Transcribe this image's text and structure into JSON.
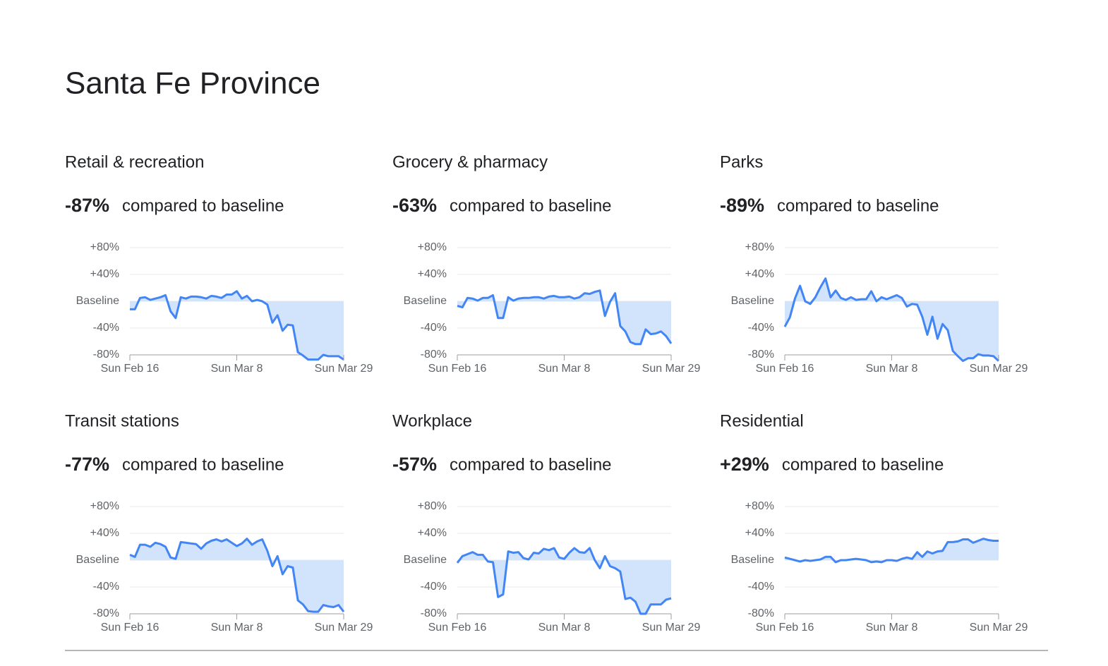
{
  "title": "Santa Fe Province",
  "chart_data": [
    {
      "type": "line",
      "title": "Retail & recreation",
      "headline": {
        "value": -87,
        "label": "-87%"
      },
      "subtitle": "compared to baseline",
      "categories": [
        "Sun Feb 16",
        null,
        null,
        null,
        null,
        null,
        null,
        null,
        null,
        null,
        null,
        null,
        null,
        null,
        null,
        null,
        null,
        null,
        null,
        null,
        null,
        "Sun Mar 8",
        null,
        null,
        null,
        null,
        null,
        null,
        null,
        null,
        null,
        null,
        null,
        null,
        null,
        null,
        null,
        null,
        null,
        null,
        null,
        null,
        "Sun Mar 29"
      ],
      "series": [
        {
          "color": "#4285f4",
          "values": [
            -12,
            -12,
            5,
            6,
            2,
            4,
            6,
            9,
            -15,
            -25,
            6,
            4,
            7,
            7,
            6,
            4,
            8,
            7,
            5,
            10,
            10,
            15,
            4,
            8,
            0,
            2,
            0,
            -5,
            -32,
            -21,
            -44,
            -35,
            -36,
            -76,
            -81,
            -87,
            -87,
            -87,
            -80,
            -82,
            -82,
            -82,
            -87
          ]
        }
      ],
      "ylim": [
        -80,
        80
      ],
      "yticks": [
        {
          "value": 80,
          "label": "+80%"
        },
        {
          "value": 40,
          "label": "+40%"
        },
        {
          "value": 0,
          "label": "Baseline"
        },
        {
          "value": -40,
          "label": "-40%"
        },
        {
          "value": -80,
          "label": "-80%"
        }
      ],
      "area_color": "#d2e3fc"
    },
    {
      "type": "line",
      "title": "Grocery & pharmacy",
      "headline": {
        "value": -63,
        "label": "-63%"
      },
      "subtitle": "compared to baseline",
      "categories": [
        "Sun Feb 16",
        null,
        null,
        null,
        null,
        null,
        null,
        null,
        null,
        null,
        null,
        null,
        null,
        null,
        null,
        null,
        null,
        null,
        null,
        null,
        null,
        "Sun Mar 8",
        null,
        null,
        null,
        null,
        null,
        null,
        null,
        null,
        null,
        null,
        null,
        null,
        null,
        null,
        null,
        null,
        null,
        null,
        null,
        null,
        "Sun Mar 29"
      ],
      "series": [
        {
          "color": "#4285f4",
          "values": [
            -7,
            -9,
            5,
            4,
            1,
            5,
            5,
            9,
            -25,
            -25,
            6,
            1,
            4,
            5,
            5,
            6,
            6,
            4,
            7,
            8,
            6,
            6,
            7,
            4,
            6,
            12,
            11,
            14,
            16,
            -22,
            -1,
            12,
            -37,
            -45,
            -61,
            -64,
            -64,
            -42,
            -49,
            -48,
            -45,
            -52,
            -63
          ]
        }
      ],
      "ylim": [
        -80,
        80
      ],
      "yticks": [
        {
          "value": 80,
          "label": "+80%"
        },
        {
          "value": 40,
          "label": "+40%"
        },
        {
          "value": 0,
          "label": "Baseline"
        },
        {
          "value": -40,
          "label": "-40%"
        },
        {
          "value": -80,
          "label": "-80%"
        }
      ],
      "area_color": "#d2e3fc"
    },
    {
      "type": "line",
      "title": "Parks",
      "headline": {
        "value": -89,
        "label": "-89%"
      },
      "subtitle": "compared to baseline",
      "categories": [
        "Sun Feb 16",
        null,
        null,
        null,
        null,
        null,
        null,
        null,
        null,
        null,
        null,
        null,
        null,
        null,
        null,
        null,
        null,
        null,
        null,
        null,
        null,
        "Sun Mar 8",
        null,
        null,
        null,
        null,
        null,
        null,
        null,
        null,
        null,
        null,
        null,
        null,
        null,
        null,
        null,
        null,
        null,
        null,
        null,
        null,
        "Sun Mar 29"
      ],
      "series": [
        {
          "color": "#4285f4",
          "values": [
            -38,
            -24,
            4,
            23,
            0,
            -4,
            6,
            21,
            34,
            6,
            16,
            5,
            2,
            6,
            2,
            3,
            3,
            15,
            0,
            6,
            3,
            6,
            9,
            5,
            -8,
            -4,
            -5,
            -23,
            -50,
            -23,
            -56,
            -34,
            -43,
            -74,
            -82,
            -89,
            -85,
            -85,
            -79,
            -81,
            -81,
            -82,
            -89
          ]
        }
      ],
      "ylim": [
        -80,
        80
      ],
      "yticks": [
        {
          "value": 80,
          "label": "+80%"
        },
        {
          "value": 40,
          "label": "+40%"
        },
        {
          "value": 0,
          "label": "Baseline"
        },
        {
          "value": -40,
          "label": "-40%"
        },
        {
          "value": -80,
          "label": "-80%"
        }
      ],
      "area_color": "#d2e3fc"
    },
    {
      "type": "line",
      "title": "Transit stations",
      "headline": {
        "value": -77,
        "label": "-77%"
      },
      "subtitle": "compared to baseline",
      "categories": [
        "Sun Feb 16",
        null,
        null,
        null,
        null,
        null,
        null,
        null,
        null,
        null,
        null,
        null,
        null,
        null,
        null,
        null,
        null,
        null,
        null,
        null,
        null,
        "Sun Mar 8",
        null,
        null,
        null,
        null,
        null,
        null,
        null,
        null,
        null,
        null,
        null,
        null,
        null,
        null,
        null,
        null,
        null,
        null,
        null,
        null,
        "Sun Mar 29"
      ],
      "series": [
        {
          "color": "#4285f4",
          "values": [
            8,
            5,
            23,
            23,
            20,
            26,
            24,
            20,
            4,
            2,
            27,
            26,
            25,
            24,
            17,
            25,
            29,
            31,
            28,
            31,
            26,
            21,
            25,
            32,
            23,
            28,
            31,
            14,
            -9,
            6,
            -21,
            -9,
            -11,
            -60,
            -66,
            -76,
            -77,
            -77,
            -67,
            -69,
            -70,
            -67,
            -77
          ]
        }
      ],
      "ylim": [
        -80,
        80
      ],
      "yticks": [
        {
          "value": 80,
          "label": "+80%"
        },
        {
          "value": 40,
          "label": "+40%"
        },
        {
          "value": 0,
          "label": "Baseline"
        },
        {
          "value": -40,
          "label": "-40%"
        },
        {
          "value": -80,
          "label": "-80%"
        }
      ],
      "area_color": "#d2e3fc"
    },
    {
      "type": "line",
      "title": "Workplace",
      "headline": {
        "value": -57,
        "label": "-57%"
      },
      "subtitle": "compared to baseline",
      "categories": [
        "Sun Feb 16",
        null,
        null,
        null,
        null,
        null,
        null,
        null,
        null,
        null,
        null,
        null,
        null,
        null,
        null,
        null,
        null,
        null,
        null,
        null,
        null,
        "Sun Mar 8",
        null,
        null,
        null,
        null,
        null,
        null,
        null,
        null,
        null,
        null,
        null,
        null,
        null,
        null,
        null,
        null,
        null,
        null,
        null,
        null,
        "Sun Mar 29"
      ],
      "series": [
        {
          "color": "#4285f4",
          "values": [
            -4,
            6,
            9,
            12,
            8,
            8,
            -2,
            -3,
            -55,
            -51,
            13,
            11,
            12,
            3,
            1,
            11,
            10,
            17,
            15,
            18,
            4,
            2,
            11,
            18,
            12,
            11,
            18,
            0,
            -12,
            6,
            -9,
            -12,
            -17,
            -58,
            -56,
            -62,
            -80,
            -80,
            -66,
            -66,
            -66,
            -59,
            -57
          ]
        }
      ],
      "ylim": [
        -80,
        80
      ],
      "yticks": [
        {
          "value": 80,
          "label": "+80%"
        },
        {
          "value": 40,
          "label": "+40%"
        },
        {
          "value": 0,
          "label": "Baseline"
        },
        {
          "value": -40,
          "label": "-40%"
        },
        {
          "value": -80,
          "label": "-80%"
        }
      ],
      "area_color": "#d2e3fc"
    },
    {
      "type": "line",
      "title": "Residential",
      "headline": {
        "value": 29,
        "label": "+29%"
      },
      "subtitle": "compared to baseline",
      "categories": [
        "Sun Feb 16",
        null,
        null,
        null,
        null,
        null,
        null,
        null,
        null,
        null,
        null,
        null,
        null,
        null,
        null,
        null,
        null,
        null,
        null,
        null,
        null,
        "Sun Mar 8",
        null,
        null,
        null,
        null,
        null,
        null,
        null,
        null,
        null,
        null,
        null,
        null,
        null,
        null,
        null,
        null,
        null,
        null,
        null,
        null,
        "Sun Mar 29"
      ],
      "series": [
        {
          "color": "#4285f4",
          "values": [
            4,
            2,
            0,
            -2,
            0,
            -1,
            0,
            1,
            5,
            5,
            -3,
            0,
            0,
            1,
            2,
            1,
            0,
            -3,
            -2,
            -3,
            0,
            0,
            -1,
            2,
            4,
            2,
            12,
            5,
            13,
            10,
            13,
            14,
            27,
            27,
            28,
            31,
            31,
            26,
            29,
            32,
            30,
            29,
            29
          ]
        }
      ],
      "ylim": [
        -80,
        80
      ],
      "yticks": [
        {
          "value": 80,
          "label": "+80%"
        },
        {
          "value": 40,
          "label": "+40%"
        },
        {
          "value": 0,
          "label": "Baseline"
        },
        {
          "value": -40,
          "label": "-40%"
        },
        {
          "value": -80,
          "label": "-80%"
        }
      ],
      "area_color": "#d2e3fc"
    }
  ]
}
